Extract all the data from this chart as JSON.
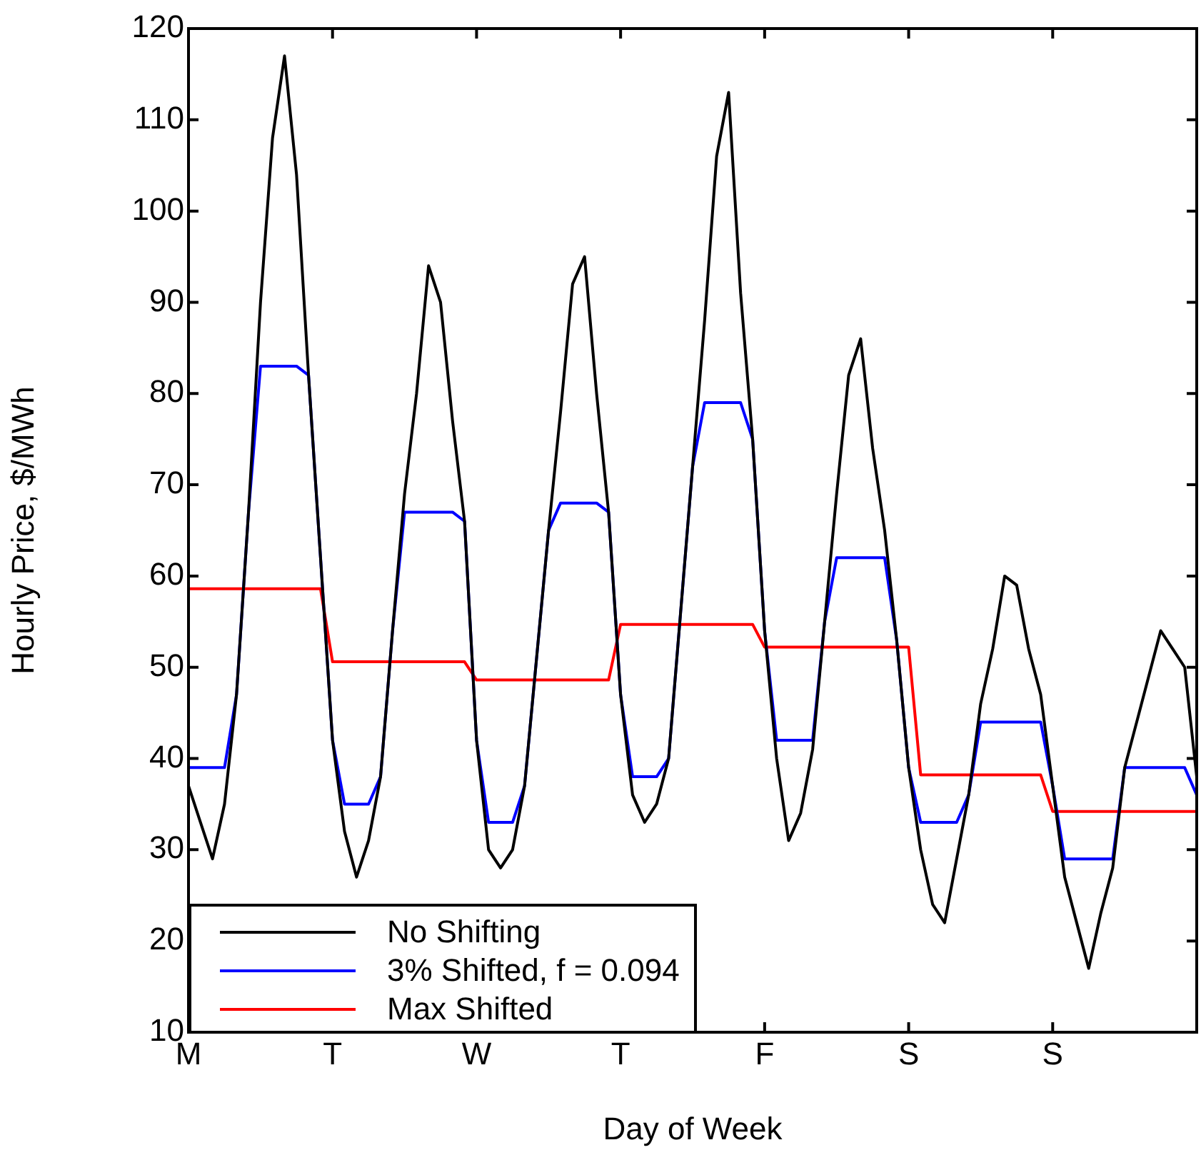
{
  "chart_data": {
    "type": "line",
    "xlabel": "Day of Week",
    "ylabel": "Hourly Price, $/MWh",
    "categories": [
      "M",
      null,
      null,
      null,
      null,
      null,
      null,
      null,
      null,
      null,
      null,
      null,
      "T",
      null,
      null,
      null,
      null,
      null,
      null,
      null,
      null,
      null,
      null,
      null,
      "W",
      null,
      null,
      null,
      null,
      null,
      null,
      null,
      null,
      null,
      null,
      null,
      "T",
      null,
      null,
      null,
      null,
      null,
      null,
      null,
      null,
      null,
      null,
      null,
      "F",
      null,
      null,
      null,
      null,
      null,
      null,
      null,
      null,
      null,
      null,
      null,
      "S",
      null,
      null,
      null,
      null,
      null,
      null,
      null,
      null,
      null,
      null,
      null,
      "S",
      null,
      null,
      null,
      null,
      null,
      null,
      null,
      null,
      null,
      null,
      null,
      null
    ],
    "ylim": [
      10,
      120
    ],
    "yticks": [
      10,
      20,
      30,
      40,
      50,
      60,
      70,
      80,
      90,
      100,
      110,
      120
    ],
    "grid": false,
    "legend": "bottom left",
    "marker": "none",
    "line_style": "solid",
    "series": [
      {
        "name": "No Shifting",
        "color": "#000000",
        "values": [
          37,
          33,
          29,
          35,
          47,
          67,
          90,
          108,
          117,
          104,
          82,
          62,
          42,
          32,
          27,
          31,
          38,
          54,
          69,
          80,
          94,
          90,
          77,
          66,
          42,
          30,
          28,
          30,
          37,
          51,
          65,
          78,
          92,
          95,
          80,
          67,
          47,
          36,
          33,
          35,
          40,
          56,
          72,
          88,
          106,
          113,
          91,
          75,
          54,
          40,
          31,
          34,
          41,
          55,
          69,
          82,
          86,
          74,
          65,
          53,
          39,
          30,
          24,
          22,
          29,
          36,
          46,
          52,
          60,
          59,
          52,
          47,
          37,
          27,
          22,
          17,
          23,
          28,
          39,
          44,
          49,
          54,
          52,
          50,
          38
        ]
      },
      {
        "name": "3% Shifted, f = 0.094",
        "color": "#0000ff",
        "values": [
          39,
          39,
          39,
          39,
          47,
          67,
          83,
          83,
          83,
          83,
          82,
          62,
          42,
          35,
          35,
          35,
          38,
          54,
          67,
          67,
          67,
          67,
          67,
          66,
          42,
          33,
          33,
          33,
          37,
          51,
          65,
          68,
          68,
          68,
          68,
          67,
          47,
          38,
          38,
          38,
          40,
          56,
          72,
          79,
          79,
          79,
          79,
          75,
          54,
          42,
          42,
          42,
          42,
          55,
          62,
          62,
          62,
          62,
          62,
          53,
          39,
          33,
          33,
          33,
          33,
          36,
          44,
          44,
          44,
          44,
          44,
          44,
          37,
          29,
          29,
          29,
          29,
          29,
          39,
          39,
          39,
          39,
          39,
          39,
          36
        ]
      },
      {
        "name": "Max Shifted",
        "color": "#ff0000",
        "values": [
          58.6,
          58.6,
          58.6,
          58.6,
          58.6,
          58.6,
          58.6,
          58.6,
          58.6,
          58.6,
          58.6,
          58.6,
          50.6,
          50.6,
          50.6,
          50.6,
          50.6,
          50.6,
          50.6,
          50.6,
          50.6,
          50.6,
          50.6,
          50.6,
          48.6,
          48.6,
          48.6,
          48.6,
          48.6,
          48.6,
          48.6,
          48.6,
          48.6,
          48.6,
          48.6,
          48.6,
          54.7,
          54.7,
          54.7,
          54.7,
          54.7,
          54.7,
          54.7,
          54.7,
          54.7,
          54.7,
          54.7,
          54.7,
          52.2,
          52.2,
          52.2,
          52.2,
          52.2,
          52.2,
          52.2,
          52.2,
          52.2,
          52.2,
          52.2,
          52.2,
          52.2,
          38.2,
          38.2,
          38.2,
          38.2,
          38.2,
          38.2,
          38.2,
          38.2,
          38.2,
          38.2,
          38.2,
          34.2,
          34.2,
          34.2,
          34.2,
          34.2,
          34.2,
          34.2,
          34.2,
          34.2,
          34.2,
          34.2,
          34.2,
          34.2
        ]
      }
    ]
  }
}
